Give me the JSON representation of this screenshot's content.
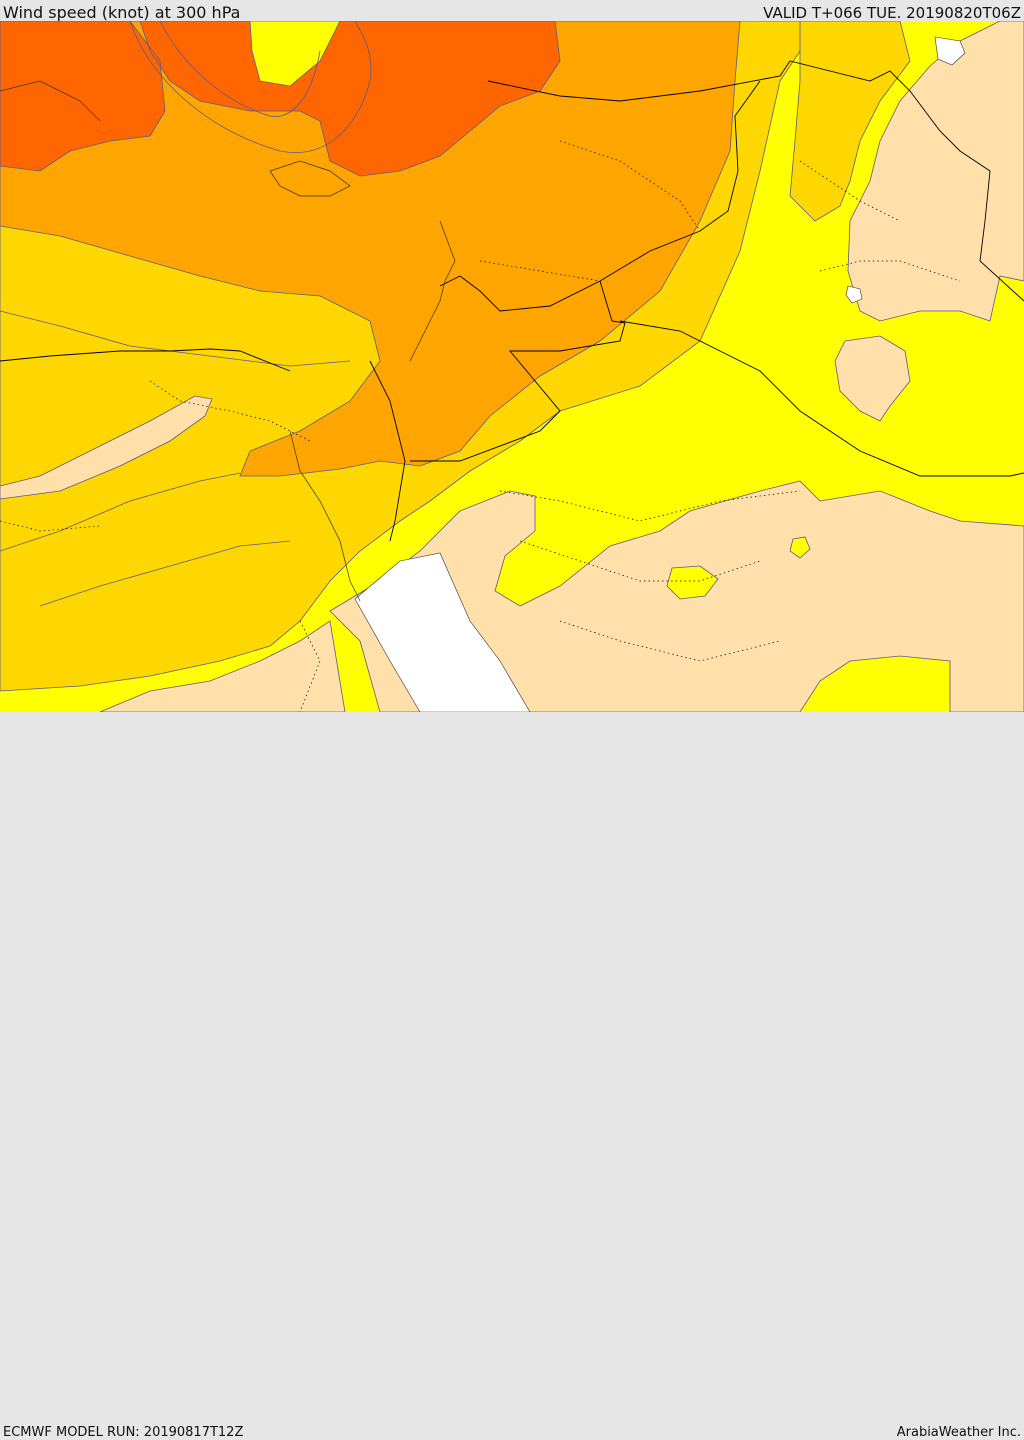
{
  "header": {
    "title": "Wind speed (knot) at 300 hPa",
    "valid": "VALID T+066 TUE. 20190820T06Z"
  },
  "footer": {
    "model_run": "ECMWF MODEL RUN: 20190817T12Z",
    "credit": "ArabiaWeather Inc."
  },
  "legend_colors": {
    "very_low": "#ffdfaa",
    "low": "#ffff00",
    "medium": "#ffd700",
    "high": "#ffa500",
    "very_high": "#ff6600",
    "sea_masked": "#ffffff",
    "contour": "#5a5a8c",
    "border": "#000000"
  }
}
